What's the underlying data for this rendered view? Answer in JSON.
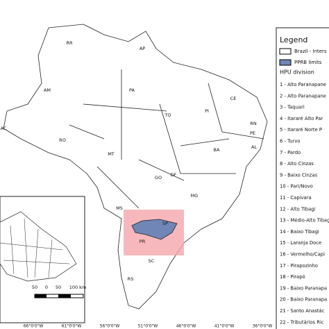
{
  "map": {
    "states": [
      "RR",
      "AP",
      "AM",
      "PA",
      "CE",
      "RN",
      "PI",
      "PE",
      "AL",
      "TO",
      "BA",
      "AC",
      "RO",
      "MT",
      "GO",
      "DF",
      "MG",
      "MS",
      "SP",
      "PR",
      "SC",
      "RS"
    ],
    "longitude_labels": [
      "66°0'0\"W",
      "61°0'0\"W",
      "56°0'0\"W",
      "51°0'0\"W",
      "46°0'0\"W",
      "41°0'0\"W",
      "36°0'0\"W"
    ],
    "scale_bar": {
      "labels": [
        "50",
        "0",
        "50",
        "100 km"
      ]
    }
  },
  "legend": {
    "title": "Legend",
    "items": [
      "Brazil - Inters",
      "PPRB limits"
    ],
    "hpu_title": "HPU division",
    "hpu": [
      "1 - Alto Paranapane",
      "2 - Alto Paranapane",
      "3 - Taquari",
      "4 - Itararé Alto Par",
      "5 - Itararé Norte P",
      "6 - Turvo",
      "7 - Pardo",
      "8 - Alto Cinzas",
      "9 - Baixo Cinzas",
      "10 - Pari/Novo",
      "11 - Capivara",
      "12 - Alto Tibagi",
      "13 - Médio-Alto Tibag",
      "14 - Baixo Tibagi",
      "15 - Laranja Doce",
      "16 - Vermelho/Capi",
      "17 - Pirapozinho",
      "18 - Pirapó",
      "19 - Baixo Paranapa",
      "20 - Baixo Paranapa",
      "21 - Santo Anastác",
      "22 - Tributários Ric"
    ]
  }
}
